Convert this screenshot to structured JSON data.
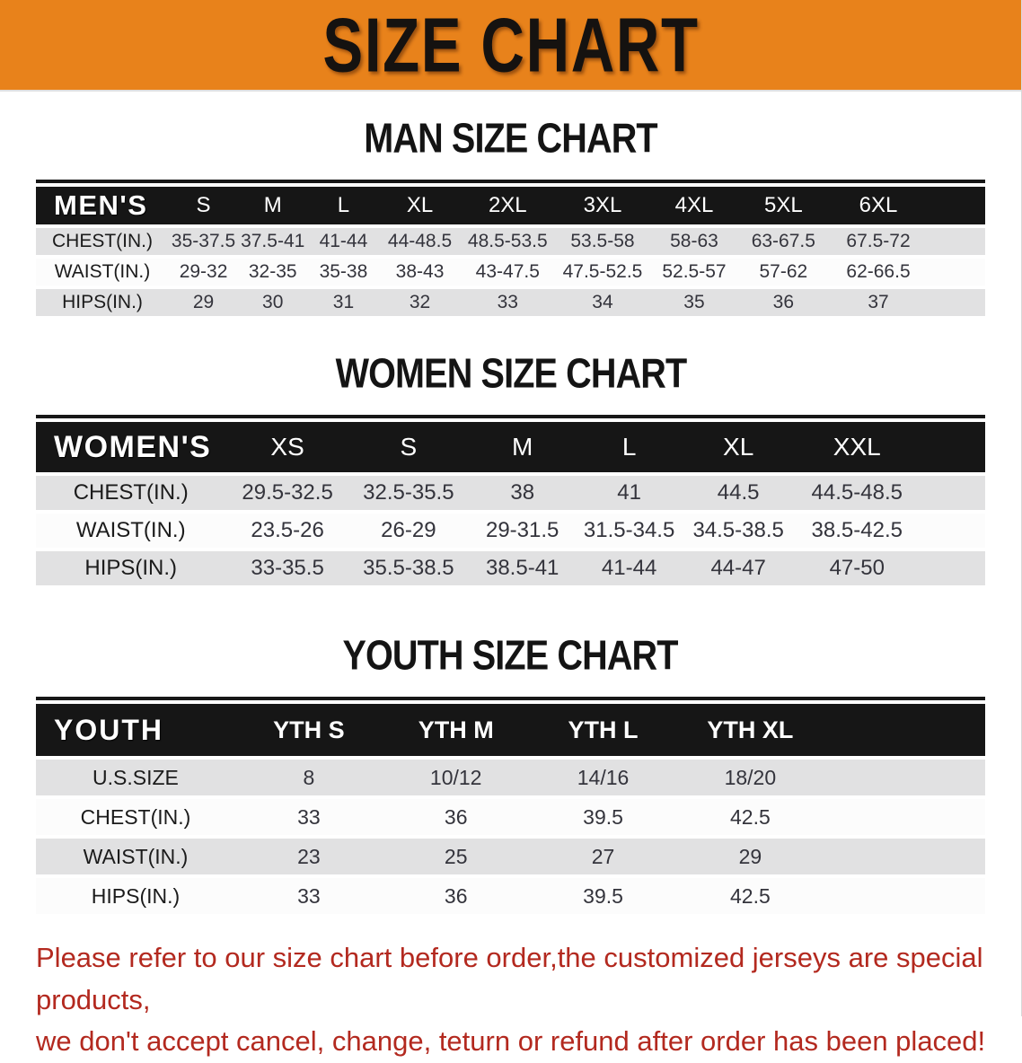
{
  "colors": {
    "banner_bg": "#E8821B",
    "table_header_bar": "#161616",
    "row_stripe_gray": "#E1E1E2",
    "disclaimer_red": "#B3291F"
  },
  "banner": {
    "title": "SIZE CHART"
  },
  "sections": [
    {
      "heading": "MAN SIZE CHART",
      "table": {
        "corner": "MEN'S",
        "columns": [
          "S",
          "M",
          "L",
          "XL",
          "2XL",
          "3XL",
          "4XL",
          "5XL",
          "6XL"
        ],
        "rows": [
          {
            "label": "CHEST(IN.)",
            "values": [
              "35-37.5",
              "37.5-41",
              "41-44",
              "44-48.5",
              "48.5-53.5",
              "53.5-58",
              "58-63",
              "63-67.5",
              "67.5-72"
            ]
          },
          {
            "label": "WAIST(IN.)",
            "values": [
              "29-32",
              "32-35",
              "35-38",
              "38-43",
              "43-47.5",
              "47.5-52.5",
              "52.5-57",
              "57-62",
              "62-66.5"
            ]
          },
          {
            "label": "HIPS(IN.)",
            "values": [
              "29",
              "30",
              "31",
              "32",
              "33",
              "34",
              "35",
              "36",
              "37"
            ]
          }
        ]
      }
    },
    {
      "heading": "WOMEN SIZE CHART",
      "table": {
        "corner": "WOMEN'S",
        "columns": [
          "XS",
          "S",
          "M",
          "L",
          "XL",
          "XXL"
        ],
        "rows": [
          {
            "label": "CHEST(IN.)",
            "values": [
              "29.5-32.5",
              "32.5-35.5",
              "38",
              "41",
              "44.5",
              "44.5-48.5"
            ]
          },
          {
            "label": "WAIST(IN.)",
            "values": [
              "23.5-26",
              "26-29",
              "29-31.5",
              "31.5-34.5",
              "34.5-38.5",
              "38.5-42.5"
            ]
          },
          {
            "label": "HIPS(IN.)",
            "values": [
              "33-35.5",
              "35.5-38.5",
              "38.5-41",
              "41-44",
              "44-47",
              "47-50"
            ]
          }
        ]
      }
    },
    {
      "heading": "YOUTH SIZE CHART",
      "table": {
        "corner": "YOUTH",
        "columns": [
          "YTH S",
          "YTH M",
          "YTH L",
          "YTH XL"
        ],
        "rows": [
          {
            "label": "U.S.SIZE",
            "values": [
              "8",
              "10/12",
              "14/16",
              "18/20"
            ]
          },
          {
            "label": "CHEST(IN.)",
            "values": [
              "33",
              "36",
              "39.5",
              "42.5"
            ]
          },
          {
            "label": "WAIST(IN.)",
            "values": [
              "23",
              "25",
              "27",
              "29"
            ]
          },
          {
            "label": "HIPS(IN.)",
            "values": [
              "33",
              "36",
              "39.5",
              "42.5"
            ]
          }
        ]
      }
    }
  ],
  "footer": {
    "line1": "Please refer to our size chart before order,the customized jerseys are special products,",
    "line2": "we don't accept cancel, change, teturn or refund after order has been placed!"
  }
}
